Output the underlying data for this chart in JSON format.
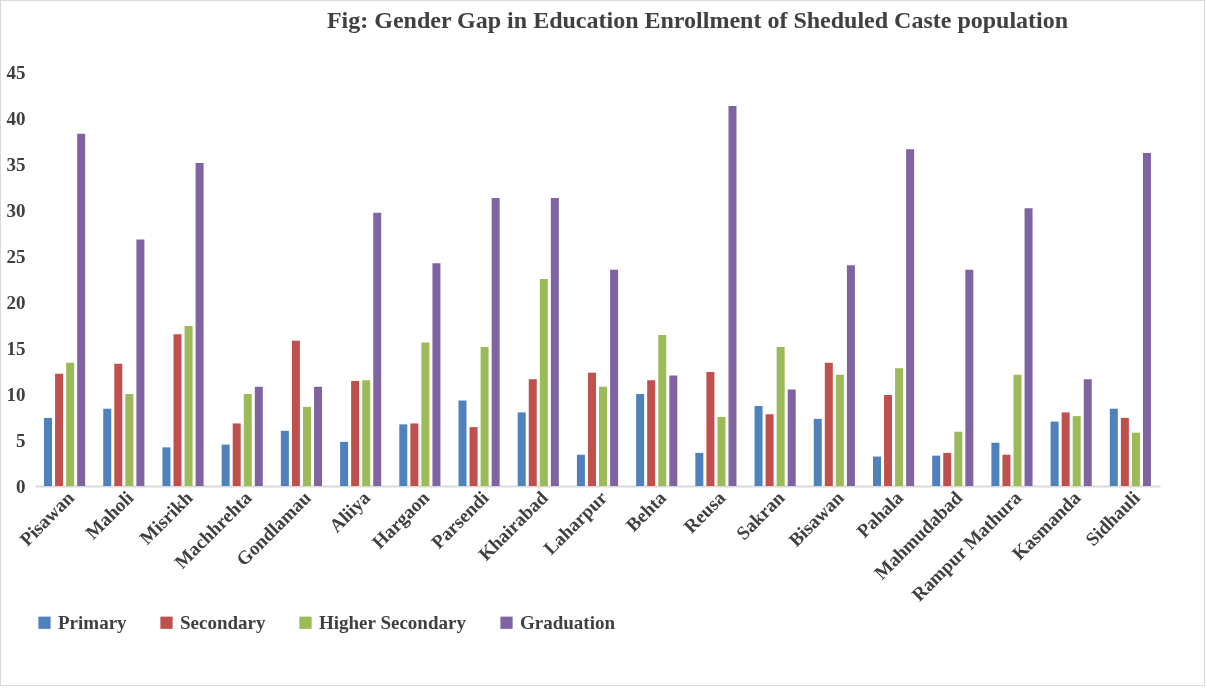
{
  "chart_data": {
    "type": "bar",
    "title": "Fig: Gender Gap in Education Enrollment of Sheduled Caste population",
    "categories": [
      "Pisawan",
      "Maholi",
      "Misrikh",
      "Machhrehta",
      "Gondlamau",
      "Aliiya",
      "Hargaon",
      "Parsendi",
      "Khairabad",
      "Laharpur",
      "Behta",
      "Reusa",
      "Sakran",
      "Bisawan",
      "Pahala",
      "Mahmudabad",
      "Rampur Mathura",
      "Kasmanda",
      "Sidhauli"
    ],
    "series": [
      {
        "name": "Primary",
        "color": "#4f81bd",
        "values": [
          7.4,
          8.4,
          4.2,
          4.5,
          6,
          4.8,
          6.7,
          9.3,
          8,
          3.4,
          10,
          3.6,
          8.7,
          7.3,
          3.2,
          3.3,
          4.7,
          7,
          8.4
        ]
      },
      {
        "name": "Secondary",
        "color": "#c0504d",
        "values": [
          12.2,
          13.3,
          16.5,
          6.8,
          15.8,
          11.4,
          6.8,
          6.4,
          11.6,
          12.3,
          11.5,
          12.4,
          7.8,
          13.4,
          9.9,
          3.6,
          3.4,
          8,
          7.4
        ]
      },
      {
        "name": "Higher Secondary",
        "color": "#9bbb59",
        "values": [
          13.4,
          10,
          17.4,
          10,
          8.6,
          11.5,
          15.6,
          15.1,
          22.5,
          10.8,
          16.4,
          7.5,
          15.1,
          12.1,
          12.8,
          5.9,
          12.1,
          7.6,
          5.8
        ]
      },
      {
        "name": "Graduation",
        "color": "#8064a2",
        "values": [
          38.3,
          26.8,
          35.1,
          10.8,
          10.8,
          29.7,
          24.2,
          31.3,
          31.3,
          23.5,
          12,
          41.3,
          10.5,
          24,
          36.6,
          23.5,
          30.2,
          11.6,
          36.2
        ]
      }
    ],
    "ylim": [
      0,
      45
    ],
    "yticks": [
      0,
      5,
      10,
      15,
      20,
      25,
      30,
      35,
      40,
      45
    ],
    "grid": false,
    "legend": "bottom"
  }
}
